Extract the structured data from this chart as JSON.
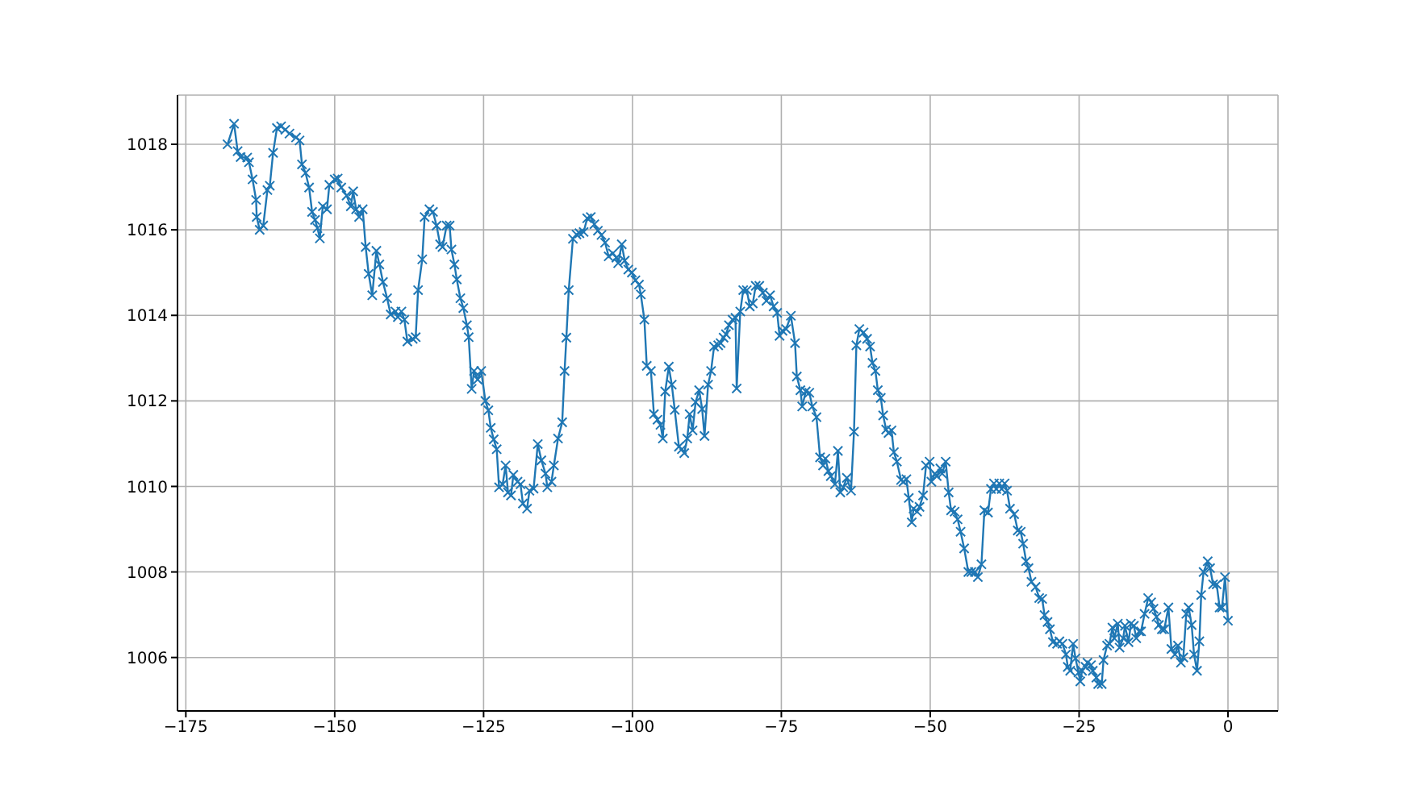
{
  "chart_data": {
    "type": "line",
    "marker": "cross",
    "line_style": "solid",
    "grid": true,
    "xlim": [
      -176.4,
      8.4
    ],
    "ylim": [
      1004.75,
      1019.15
    ],
    "xticks": [
      {
        "value": -175,
        "label": "−175"
      },
      {
        "value": -150,
        "label": "−150"
      },
      {
        "value": -125,
        "label": "−125"
      },
      {
        "value": -100,
        "label": "−100"
      },
      {
        "value": -75,
        "label": "−75"
      },
      {
        "value": -50,
        "label": "−50"
      },
      {
        "value": -25,
        "label": "−25"
      },
      {
        "value": 0,
        "label": "0"
      }
    ],
    "yticks": [
      1006,
      1008,
      1010,
      1012,
      1014,
      1016,
      1018
    ],
    "series": [
      {
        "color": "#1f77b4",
        "x": [
          -168,
          -166.9,
          -166.3,
          -165.8,
          -164.7,
          -164.4,
          -163.8,
          -163.2,
          -163.1,
          -162.6,
          -162.0,
          -161.3,
          -160.9,
          -160.35,
          -159.7,
          -159.0,
          -158.3,
          -157.6,
          -156.5,
          -155.9,
          -155.5,
          -154.9,
          -154.3,
          -153.8,
          -153.3,
          -152.9,
          -152.5,
          -152.0,
          -151.3,
          -150.9,
          -150.0,
          -149.5,
          -148.9,
          -148.0,
          -147.3,
          -146.9,
          -146.4,
          -145.9,
          -145.3,
          -144.8,
          -144.3,
          -143.7,
          -143.0,
          -142.5,
          -141.9,
          -141.2,
          -140.6,
          -139.8,
          -139.4,
          -138.8,
          -138.3,
          -137.8,
          -136.9,
          -136.4,
          -136.0,
          -135.3,
          -134.9,
          -134.1,
          -133.5,
          -132.9,
          -132.3,
          -131.9,
          -131.2,
          -130.7,
          -130.4,
          -129.9,
          -129.5,
          -128.9,
          -128.4,
          -127.8,
          -127.5,
          -127.0,
          -126.6,
          -126.0,
          -125.4,
          -124.7,
          -124.2,
          -123.8,
          -123.3,
          -122.8,
          -122.4,
          -121.8,
          -121.3,
          -120.9,
          -120.4,
          -120.0,
          -119.3,
          -118.8,
          -118.4,
          -117.7,
          -117.3,
          -116.6,
          -115.9,
          -115.3,
          -114.6,
          -114.3,
          -113.6,
          -113.2,
          -112.5,
          -111.8,
          -111.4,
          -111.1,
          -110.7,
          -110.0,
          -109.4,
          -108.9,
          -108.2,
          -107.6,
          -107.0,
          -106.4,
          -105.8,
          -105.2,
          -104.6,
          -104.0,
          -103.3,
          -102.7,
          -102.4,
          -101.8,
          -101.3,
          -100.7,
          -100.1,
          -99.5,
          -98.9,
          -98.6,
          -98.0,
          -97.6,
          -96.9,
          -96.4,
          -95.8,
          -95.3,
          -94.9,
          -94.5,
          -93.9,
          -93.4,
          -92.9,
          -92.2,
          -91.7,
          -91.3,
          -90.8,
          -90.4,
          -89.9,
          -89.4,
          -88.8,
          -88.3,
          -87.9,
          -87.3,
          -86.8,
          -86.3,
          -85.6,
          -85.2,
          -84.7,
          -84.3,
          -83.8,
          -83.2,
          -82.7,
          -82.5,
          -81.9,
          -81.4,
          -80.8,
          -80.3,
          -79.8,
          -79.3,
          -78.7,
          -78.1,
          -77.5,
          -76.9,
          -76.3,
          -75.7,
          -75.3,
          -74.8,
          -74.2,
          -73.4,
          -72.7,
          -72.4,
          -71.8,
          -71.5,
          -70.9,
          -70.3,
          -69.8,
          -69.1,
          -68.5,
          -68.0,
          -67.6,
          -67.1,
          -66.7,
          -66.0,
          -65.5,
          -65.1,
          -64.6,
          -64.0,
          -63.3,
          -62.8,
          -62.4,
          -61.9,
          -61.2,
          -60.6,
          -60.1,
          -59.7,
          -59.2,
          -58.8,
          -58.3,
          -57.9,
          -57.4,
          -57.0,
          -56.5,
          -56.1,
          -55.6,
          -54.9,
          -54.5,
          -54.0,
          -53.6,
          -53.1,
          -52.8,
          -52.2,
          -51.8,
          -51.2,
          -50.7,
          -50.1,
          -49.8,
          -49.2,
          -48.9,
          -48.3,
          -48.0,
          -47.4,
          -46.9,
          -46.5,
          -45.9,
          -45.4,
          -44.9,
          -44.3,
          -43.6,
          -43.1,
          -42.5,
          -42.0,
          -41.4,
          -40.9,
          -40.3,
          -39.8,
          -39.3,
          -38.9,
          -38.4,
          -38.0,
          -37.5,
          -37.1,
          -36.6,
          -35.9,
          -35.3,
          -34.8,
          -34.4,
          -33.9,
          -33.5,
          -33.0,
          -32.3,
          -31.7,
          -31.2,
          -30.8,
          -30.3,
          -29.9,
          -29.4,
          -28.7,
          -28.3,
          -27.8,
          -27.2,
          -26.9,
          -26.5,
          -26.0,
          -25.6,
          -25.1,
          -24.8,
          -24.5,
          -23.9,
          -23.6,
          -23.0,
          -22.7,
          -22.1,
          -21.8,
          -21.2,
          -20.9,
          -20.3,
          -19.9,
          -19.4,
          -19.1,
          -18.5,
          -18.2,
          -17.6,
          -17.3,
          -16.7,
          -16.3,
          -15.8,
          -15.4,
          -14.9,
          -14.6,
          -14.0,
          -13.4,
          -12.9,
          -12.5,
          -12.0,
          -11.6,
          -11.1,
          -10.7,
          -10.0,
          -9.5,
          -8.9,
          -8.4,
          -7.9,
          -7.5,
          -7.0,
          -6.6,
          -6.1,
          -5.7,
          -5.2,
          -4.8,
          -4.5,
          -4.1,
          -3.4,
          -3.0,
          -2.5,
          -1.9,
          -1.4,
          -1.0,
          -0.5,
          0
        ],
        "values": [
          1018.0,
          1018.48,
          1017.84,
          1017.7,
          1017.69,
          1017.58,
          1017.18,
          1016.7,
          1016.3,
          1016.0,
          1016.1,
          1016.93,
          1017.03,
          1017.8,
          1018.38,
          1018.42,
          1018.34,
          1018.25,
          1018.16,
          1018.09,
          1017.53,
          1017.33,
          1016.99,
          1016.42,
          1016.23,
          1016.04,
          1015.8,
          1016.55,
          1016.48,
          1017.05,
          1017.18,
          1017.2,
          1016.99,
          1016.8,
          1016.55,
          1016.9,
          1016.48,
          1016.3,
          1016.48,
          1015.6,
          1014.97,
          1014.47,
          1015.51,
          1015.19,
          1014.78,
          1014.4,
          1014.02,
          1014.09,
          1013.96,
          1014.09,
          1013.9,
          1013.39,
          1013.45,
          1013.49,
          1014.59,
          1015.31,
          1016.3,
          1016.48,
          1016.42,
          1016.1,
          1015.66,
          1015.6,
          1016.1,
          1016.1,
          1015.54,
          1015.19,
          1014.84,
          1014.4,
          1014.17,
          1013.77,
          1013.49,
          1012.28,
          1012.7,
          1012.5,
          1012.7,
          1012.0,
          1011.78,
          1011.37,
          1011.1,
          1010.87,
          1009.98,
          1010.05,
          1010.49,
          1009.86,
          1009.79,
          1010.27,
          1010.11,
          1010.05,
          1009.6,
          1009.48,
          1009.9,
          1009.95,
          1010.99,
          1010.61,
          1010.3,
          1009.98,
          1010.11,
          1010.49,
          1011.12,
          1011.5,
          1012.7,
          1013.48,
          1014.59,
          1015.79,
          1015.89,
          1015.92,
          1015.95,
          1016.27,
          1016.3,
          1016.13,
          1015.98,
          1015.88,
          1015.7,
          1015.38,
          1015.45,
          1015.35,
          1015.22,
          1015.66,
          1015.28,
          1015.07,
          1015.0,
          1014.82,
          1014.72,
          1014.49,
          1013.9,
          1012.82,
          1012.7,
          1011.69,
          1011.56,
          1011.44,
          1011.12,
          1012.22,
          1012.8,
          1012.38,
          1011.79,
          1010.93,
          1010.87,
          1010.78,
          1011.12,
          1011.69,
          1011.31,
          1011.97,
          1012.25,
          1011.81,
          1011.18,
          1012.38,
          1012.7,
          1013.27,
          1013.3,
          1013.35,
          1013.48,
          1013.56,
          1013.77,
          1013.9,
          1013.94,
          1012.29,
          1014.09,
          1014.59,
          1014.59,
          1014.21,
          1014.28,
          1014.69,
          1014.69,
          1014.53,
          1014.34,
          1014.47,
          1014.21,
          1014.06,
          1013.52,
          1013.64,
          1013.68,
          1013.99,
          1013.35,
          1012.57,
          1012.25,
          1011.87,
          1012.22,
          1012.19,
          1011.87,
          1011.62,
          1010.68,
          1010.49,
          1010.65,
          1010.36,
          1010.24,
          1010.05,
          1010.83,
          1009.86,
          1009.98,
          1010.2,
          1009.9,
          1011.28,
          1013.3,
          1013.68,
          1013.6,
          1013.45,
          1013.27,
          1012.89,
          1012.7,
          1012.25,
          1012.07,
          1011.66,
          1011.33,
          1011.25,
          1011.31,
          1010.8,
          1010.58,
          1010.15,
          1010.11,
          1010.17,
          1009.73,
          1009.16,
          1009.48,
          1009.41,
          1009.52,
          1009.79,
          1010.49,
          1010.58,
          1010.11,
          1010.3,
          1010.24,
          1010.42,
          1010.3,
          1010.58,
          1009.86,
          1009.44,
          1009.41,
          1009.23,
          1008.94,
          1008.55,
          1008.0,
          1008.0,
          1008.0,
          1007.88,
          1008.18,
          1009.44,
          1009.39,
          1009.94,
          1010.07,
          1009.94,
          1010.07,
          1009.94,
          1010.07,
          1009.9,
          1009.48,
          1009.35,
          1008.97,
          1008.94,
          1008.66,
          1008.25,
          1008.09,
          1007.77,
          1007.65,
          1007.39,
          1007.37,
          1006.99,
          1006.83,
          1006.66,
          1006.36,
          1006.32,
          1006.38,
          1006.32,
          1006.07,
          1005.78,
          1005.69,
          1006.32,
          1005.98,
          1005.65,
          1005.44,
          1005.69,
          1005.78,
          1005.88,
          1005.82,
          1005.69,
          1005.53,
          1005.38,
          1005.38,
          1005.94,
          1006.28,
          1006.32,
          1006.7,
          1006.45,
          1006.79,
          1006.23,
          1006.45,
          1006.74,
          1006.36,
          1006.79,
          1006.74,
          1006.45,
          1006.61,
          1006.61,
          1007.02,
          1007.39,
          1007.29,
          1007.14,
          1006.95,
          1006.76,
          1006.66,
          1006.66,
          1007.17,
          1006.2,
          1006.07,
          1006.28,
          1005.88,
          1006.0,
          1007.02,
          1007.17,
          1006.76,
          1006.07,
          1005.69,
          1006.38,
          1007.46,
          1008.0,
          1008.25,
          1008.09,
          1007.71,
          1007.71,
          1007.17,
          1007.17,
          1007.88,
          1006.86
        ]
      }
    ]
  }
}
